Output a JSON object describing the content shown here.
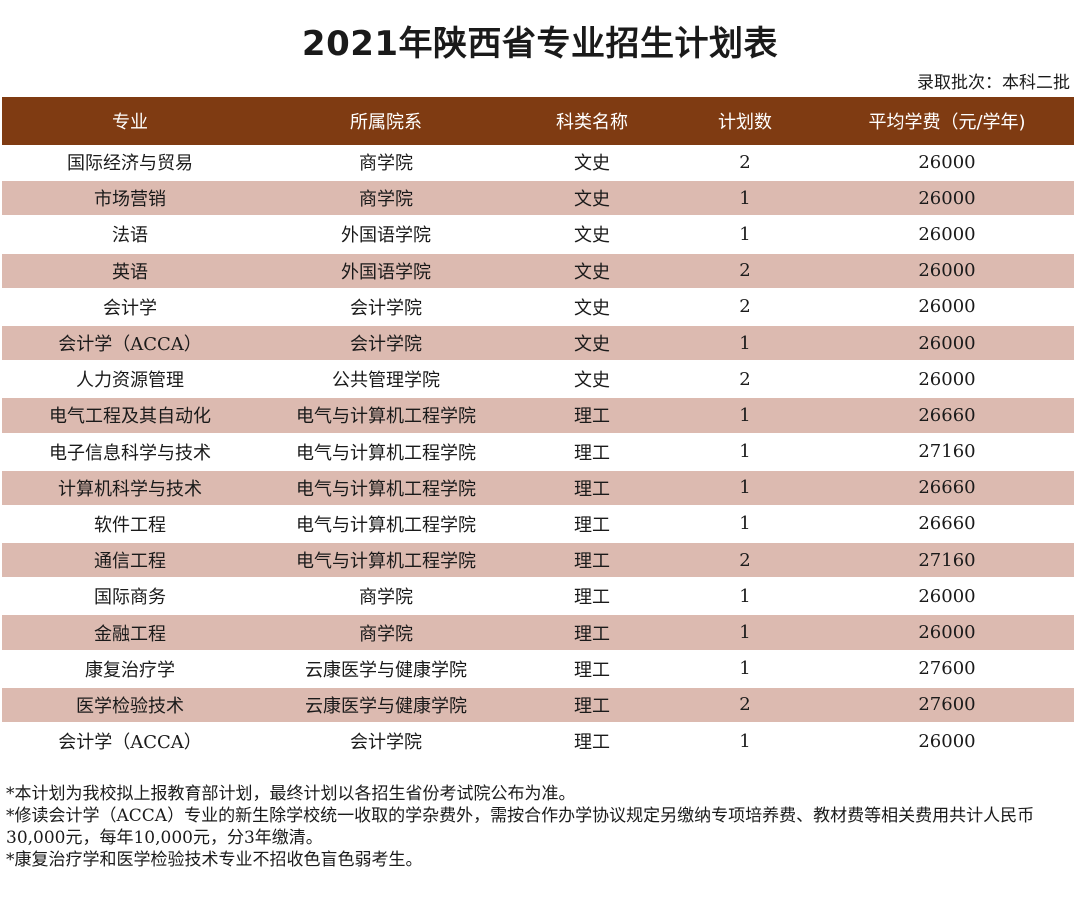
{
  "title": "2021年陕西省专业招生计划表",
  "batch": "录取批次：本科二批",
  "table": {
    "headers": [
      "专业",
      "所属院系",
      "科类名称",
      "计划数",
      "平均学费（元/学年)"
    ],
    "rows": [
      [
        "国际经济与贸易",
        "商学院",
        "文史",
        "2",
        "26000"
      ],
      [
        "市场营销",
        "商学院",
        "文史",
        "1",
        "26000"
      ],
      [
        "法语",
        "外国语学院",
        "文史",
        "1",
        "26000"
      ],
      [
        "英语",
        "外国语学院",
        "文史",
        "2",
        "26000"
      ],
      [
        "会计学",
        "会计学院",
        "文史",
        "2",
        "26000"
      ],
      [
        "会计学（ACCA）",
        "会计学院",
        "文史",
        "1",
        "26000"
      ],
      [
        "人力资源管理",
        "公共管理学院",
        "文史",
        "2",
        "26000"
      ],
      [
        "电气工程及其自动化",
        "电气与计算机工程学院",
        "理工",
        "1",
        "26660"
      ],
      [
        "电子信息科学与技术",
        "电气与计算机工程学院",
        "理工",
        "1",
        "27160"
      ],
      [
        "计算机科学与技术",
        "电气与计算机工程学院",
        "理工",
        "1",
        "26660"
      ],
      [
        "软件工程",
        "电气与计算机工程学院",
        "理工",
        "1",
        "26660"
      ],
      [
        "通信工程",
        "电气与计算机工程学院",
        "理工",
        "2",
        "27160"
      ],
      [
        "国际商务",
        "商学院",
        "理工",
        "1",
        "26000"
      ],
      [
        "金融工程",
        "商学院",
        "理工",
        "1",
        "26000"
      ],
      [
        "康复治疗学",
        "云康医学与健康学院",
        "理工",
        "1",
        "27600"
      ],
      [
        "医学检验技术",
        "云康医学与健康学院",
        "理工",
        "2",
        "27600"
      ],
      [
        "会计学（ACCA）",
        "会计学院",
        "理工",
        "1",
        "26000"
      ]
    ]
  },
  "notes": [
    "*本计划为我校拟上报教育部计划，最终计划以各招生省份考试院公布为准。",
    "*修读会计学（ACCA）专业的新生除学校统一收取的学杂费外，需按合作办学协议规定另缴纳专项培养费、教材费等相关费用共计人民币30,000元，每年10,000元，分3年缴清。",
    "*康复治疗学和医学检验技术专业不招收色盲色弱考生。"
  ],
  "colors": {
    "header_bg": "#7f3b12",
    "stripe_bg": "#dcbab0"
  }
}
